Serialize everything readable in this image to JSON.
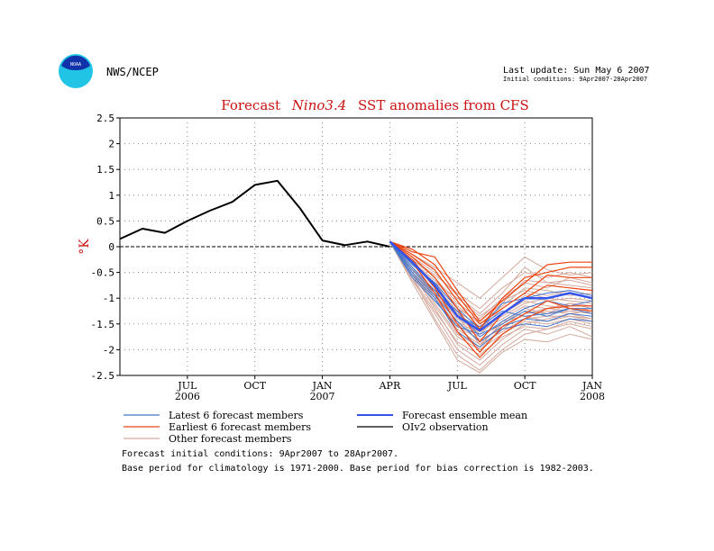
{
  "header": {
    "org_label": "NWS/NCEP",
    "logo_text": "NOAA",
    "last_update": "Last update: Sun May 6 2007",
    "initial_conditions": "Initial conditions: 9Apr2007-28Apr2007"
  },
  "footer": {
    "line1": "Forecast initial conditions: 9Apr2007 to 28Apr2007.",
    "line2": "Base period for climatology is 1971-2000. Base period for bias correction is 1982-2003."
  },
  "colors": {
    "title": "#cc1111",
    "ylabel": "#cc1111",
    "observation": "#000000",
    "mean": "#3355ee",
    "latest": "#4477cc",
    "earliest": "#ee4411",
    "other": "#d4a89c",
    "logo_outer": "#22c4e6",
    "logo_inner": "#1133aa"
  },
  "chart_data": {
    "type": "line",
    "title_prefix": "Forecast",
    "title_italic": "Nino3.4",
    "title_suffix": "SST anomalies from CFS",
    "title": "Forecast Nino3.4 SST anomalies from CFS",
    "ylabel": "°K",
    "ylim": [
      -2.5,
      2.5
    ],
    "yticks": [
      "2.5",
      "2",
      "1.5",
      "1",
      "0.5",
      "0",
      "-0.5",
      "-1",
      "-1.5",
      "-2",
      "-2.5"
    ],
    "xlim": [
      "2006-04",
      "2008-01"
    ],
    "xticks": [
      {
        "label": "JUL",
        "sub": "2006",
        "month": "2006-07"
      },
      {
        "label": "OCT",
        "sub": "",
        "month": "2006-10"
      },
      {
        "label": "JAN",
        "sub": "2007",
        "month": "2007-01"
      },
      {
        "label": "APR",
        "sub": "",
        "month": "2007-04"
      },
      {
        "label": "JUL",
        "sub": "",
        "month": "2007-07"
      },
      {
        "label": "OCT",
        "sub": "",
        "month": "2007-10"
      },
      {
        "label": "JAN",
        "sub": "2008",
        "month": "2008-01"
      }
    ],
    "grid": true,
    "legend": [
      {
        "label": "Latest 6 forecast members",
        "key": "latest"
      },
      {
        "label": "Forecast ensemble mean",
        "key": "mean"
      },
      {
        "label": "Earliest 6 forecast members",
        "key": "earliest"
      },
      {
        "label": "OIv2 observation",
        "key": "observation"
      },
      {
        "label": "Other forecast members",
        "key": "other"
      }
    ],
    "observation": {
      "name": "OIv2 observation",
      "x": [
        "2006-04",
        "2006-05",
        "2006-06",
        "2006-07",
        "2006-08",
        "2006-09",
        "2006-10",
        "2006-11",
        "2006-12",
        "2007-01",
        "2007-02",
        "2007-03",
        "2007-04"
      ],
      "y": [
        0.15,
        0.35,
        0.27,
        0.5,
        0.7,
        0.87,
        1.2,
        1.28,
        0.75,
        0.12,
        0.03,
        0.1,
        0.0
      ]
    },
    "forecast_months": [
      "2007-04",
      "2007-05",
      "2007-06",
      "2007-07",
      "2007-08",
      "2007-09",
      "2007-10",
      "2007-11",
      "2007-12",
      "2008-01"
    ],
    "ensemble_mean": {
      "name": "Forecast ensemble mean",
      "y": [
        0.1,
        -0.3,
        -0.75,
        -1.35,
        -1.63,
        -1.3,
        -1.0,
        -1.0,
        -0.9,
        -1.0
      ]
    },
    "latest_members": [
      [
        0.1,
        -0.5,
        -0.95,
        -1.45,
        -1.85,
        -1.55,
        -1.4,
        -1.45,
        -1.3,
        -1.35
      ],
      [
        0.1,
        -0.45,
        -0.9,
        -1.25,
        -1.75,
        -1.45,
        -1.2,
        -1.05,
        -1.15,
        -1.05
      ],
      [
        0.1,
        -0.6,
        -1.05,
        -1.55,
        -1.7,
        -1.5,
        -1.25,
        -1.35,
        -1.2,
        -1.3
      ],
      [
        0.1,
        -0.35,
        -0.7,
        -1.2,
        -1.6,
        -1.1,
        -1.0,
        -0.9,
        -0.85,
        -0.95
      ],
      [
        0.1,
        -0.55,
        -1.0,
        -1.65,
        -1.95,
        -1.6,
        -1.5,
        -1.55,
        -1.4,
        -1.45
      ],
      [
        0.1,
        -0.4,
        -0.85,
        -1.35,
        -1.55,
        -1.25,
        -1.35,
        -1.3,
        -1.2,
        -1.2
      ]
    ],
    "earliest_members": [
      [
        0.1,
        -0.1,
        -0.2,
        -0.85,
        -1.45,
        -1.05,
        -0.7,
        -0.35,
        -0.3,
        -0.3
      ],
      [
        0.1,
        -0.15,
        -0.45,
        -1.05,
        -1.6,
        -1.0,
        -0.6,
        -0.5,
        -0.4,
        -0.4
      ],
      [
        0.1,
        -0.2,
        -0.6,
        -1.2,
        -1.85,
        -1.3,
        -1.0,
        -0.75,
        -0.8,
        -0.85
      ],
      [
        0.1,
        -0.25,
        -0.8,
        -1.5,
        -2.05,
        -1.55,
        -1.3,
        -1.05,
        -1.2,
        -1.25
      ],
      [
        0.1,
        -0.05,
        -0.35,
        -0.95,
        -1.5,
        -1.2,
        -0.9,
        -0.55,
        -0.6,
        -0.6
      ],
      [
        0.1,
        -0.3,
        -0.9,
        -1.65,
        -2.15,
        -1.7,
        -1.4,
        -1.2,
        -1.15,
        -1.15
      ]
    ],
    "other_members": [
      [
        0.1,
        -0.2,
        -0.6,
        -1.1,
        -1.4,
        -1.0,
        -0.7,
        -0.8,
        -0.6,
        -0.7
      ],
      [
        0.1,
        -0.3,
        -0.8,
        -1.3,
        -1.6,
        -1.2,
        -0.9,
        -1.0,
        -0.9,
        -1.0
      ],
      [
        0.1,
        -0.4,
        -1.0,
        -1.6,
        -1.9,
        -1.5,
        -1.2,
        -1.3,
        -1.1,
        -1.2
      ],
      [
        0.1,
        -0.5,
        -1.2,
        -1.9,
        -2.2,
        -1.8,
        -1.5,
        -1.4,
        -1.3,
        -1.4
      ],
      [
        0.1,
        -0.6,
        -1.4,
        -2.1,
        -2.4,
        -2.0,
        -1.7,
        -1.6,
        -1.5,
        -1.6
      ],
      [
        0.1,
        -0.25,
        -0.55,
        -0.9,
        -1.2,
        -0.8,
        -0.5,
        -0.6,
        -0.5,
        -0.6
      ],
      [
        0.1,
        -0.35,
        -0.75,
        -1.25,
        -1.55,
        -1.35,
        -1.1,
        -1.0,
        -1.05,
        -1.1
      ],
      [
        0.1,
        -0.45,
        -0.95,
        -1.55,
        -1.8,
        -1.6,
        -1.3,
        -1.25,
        -1.3,
        -1.25
      ],
      [
        0.1,
        -0.55,
        -1.15,
        -1.75,
        -2.0,
        -1.7,
        -1.45,
        -1.5,
        -1.4,
        -1.5
      ],
      [
        0.1,
        -0.65,
        -1.3,
        -2.0,
        -2.3,
        -1.9,
        -1.6,
        -1.7,
        -1.55,
        -1.75
      ],
      [
        0.1,
        -0.15,
        -0.4,
        -0.7,
        -1.0,
        -0.6,
        -0.2,
        -0.45,
        -0.55,
        -0.5
      ],
      [
        0.1,
        -0.2,
        -0.5,
        -0.95,
        -1.3,
        -0.9,
        -0.4,
        -0.7,
        -0.75,
        -0.8
      ],
      [
        0.1,
        -0.3,
        -0.65,
        -1.15,
        -1.5,
        -1.15,
        -0.8,
        -0.85,
        -0.95,
        -0.9
      ],
      [
        0.1,
        -0.4,
        -0.9,
        -1.45,
        -1.7,
        -1.3,
        -1.05,
        -1.15,
        -1.2,
        -1.3
      ],
      [
        0.1,
        -0.5,
        -1.1,
        -1.7,
        -1.95,
        -1.45,
        -1.35,
        -1.45,
        -1.35,
        -1.4
      ],
      [
        0.1,
        -0.6,
        -1.25,
        -1.85,
        -2.1,
        -1.75,
        -1.55,
        -1.6,
        -1.45,
        -1.55
      ],
      [
        0.1,
        -0.7,
        -1.45,
        -2.2,
        -2.45,
        -2.05,
        -1.8,
        -1.85,
        -1.7,
        -1.8
      ],
      [
        0.1,
        -0.35,
        -0.7,
        -1.0,
        -1.35,
        -1.05,
        -0.85,
        -0.95,
        -0.85,
        -0.95
      ],
      [
        0.1,
        -0.45,
        -0.85,
        -1.4,
        -1.65,
        -1.4,
        -1.15,
        -1.2,
        -1.1,
        -1.15
      ],
      [
        0.1,
        -0.25,
        -0.6,
        -1.2,
        -1.45,
        -1.1,
        -0.65,
        -0.7,
        -0.65,
        -0.75
      ],
      [
        0.1,
        -0.55,
        -1.05,
        -1.5,
        -1.75,
        -1.5,
        -1.25,
        -1.3,
        -1.25,
        -1.2
      ],
      [
        0.1,
        -0.4,
        -0.95,
        -1.35,
        -1.9,
        -1.65,
        -1.4,
        -1.35,
        -1.35,
        -1.45
      ],
      [
        0.1,
        -0.3,
        -0.7,
        -1.3,
        -1.7,
        -1.3,
        -0.95,
        -1.05,
        -1.0,
        -1.05
      ],
      [
        0.1,
        -0.5,
        -1.0,
        -1.5,
        -2.0,
        -1.6,
        -1.3,
        -1.2,
        -1.25,
        -1.3
      ]
    ]
  }
}
